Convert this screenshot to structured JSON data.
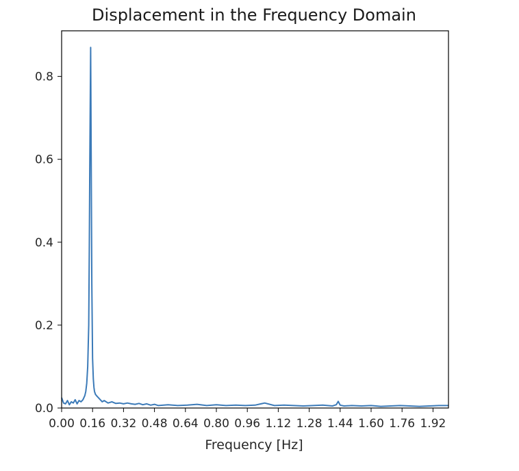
{
  "chart_data": {
    "type": "line",
    "title": "Displacement in the Frequency Domain",
    "xlabel": "Frequency [Hz]",
    "ylabel": "",
    "xlim": [
      0.0,
      2.0
    ],
    "ylim": [
      0.0,
      0.91
    ],
    "grid": false,
    "x_ticks": [
      0.0,
      0.16,
      0.32,
      0.48,
      0.64,
      0.8,
      0.96,
      1.12,
      1.28,
      1.44,
      1.6,
      1.76,
      1.92
    ],
    "x_tick_labels": [
      "0.00",
      "0.16",
      "0.32",
      "0.48",
      "0.64",
      "0.80",
      "0.96",
      "1.12",
      "1.28",
      "1.44",
      "1.60",
      "1.76",
      "1.92"
    ],
    "y_ticks": [
      0.0,
      0.2,
      0.4,
      0.6,
      0.8
    ],
    "y_tick_labels": [
      "0.0",
      "0.2",
      "0.4",
      "0.6",
      "0.8"
    ],
    "series": [
      {
        "color": "#3b7ab8",
        "x": [
          0.0,
          0.01,
          0.02,
          0.03,
          0.04,
          0.05,
          0.06,
          0.07,
          0.08,
          0.09,
          0.1,
          0.11,
          0.115,
          0.12,
          0.125,
          0.13,
          0.135,
          0.14,
          0.143,
          0.146,
          0.15,
          0.153,
          0.156,
          0.16,
          0.164,
          0.167,
          0.17,
          0.175,
          0.18,
          0.19,
          0.2,
          0.21,
          0.22,
          0.24,
          0.26,
          0.28,
          0.3,
          0.32,
          0.34,
          0.36,
          0.38,
          0.4,
          0.42,
          0.44,
          0.46,
          0.48,
          0.5,
          0.55,
          0.6,
          0.65,
          0.7,
          0.75,
          0.8,
          0.85,
          0.9,
          0.95,
          1.0,
          1.05,
          1.1,
          1.15,
          1.2,
          1.25,
          1.3,
          1.35,
          1.4,
          1.42,
          1.43,
          1.44,
          1.46,
          1.5,
          1.55,
          1.6,
          1.65,
          1.7,
          1.75,
          1.8,
          1.85,
          1.9,
          1.95,
          2.0
        ],
        "y": [
          0.025,
          0.012,
          0.01,
          0.018,
          0.008,
          0.015,
          0.012,
          0.02,
          0.01,
          0.018,
          0.015,
          0.02,
          0.025,
          0.03,
          0.04,
          0.06,
          0.1,
          0.2,
          0.38,
          0.6,
          0.87,
          0.6,
          0.3,
          0.12,
          0.07,
          0.05,
          0.04,
          0.033,
          0.03,
          0.025,
          0.02,
          0.015,
          0.018,
          0.012,
          0.015,
          0.011,
          0.012,
          0.01,
          0.012,
          0.01,
          0.009,
          0.011,
          0.008,
          0.01,
          0.007,
          0.009,
          0.006,
          0.008,
          0.006,
          0.007,
          0.009,
          0.006,
          0.008,
          0.006,
          0.007,
          0.006,
          0.007,
          0.012,
          0.006,
          0.007,
          0.006,
          0.005,
          0.006,
          0.007,
          0.005,
          0.008,
          0.016,
          0.007,
          0.005,
          0.006,
          0.005,
          0.006,
          0.004,
          0.005,
          0.006,
          0.005,
          0.004,
          0.005,
          0.006,
          0.006
        ]
      }
    ]
  }
}
